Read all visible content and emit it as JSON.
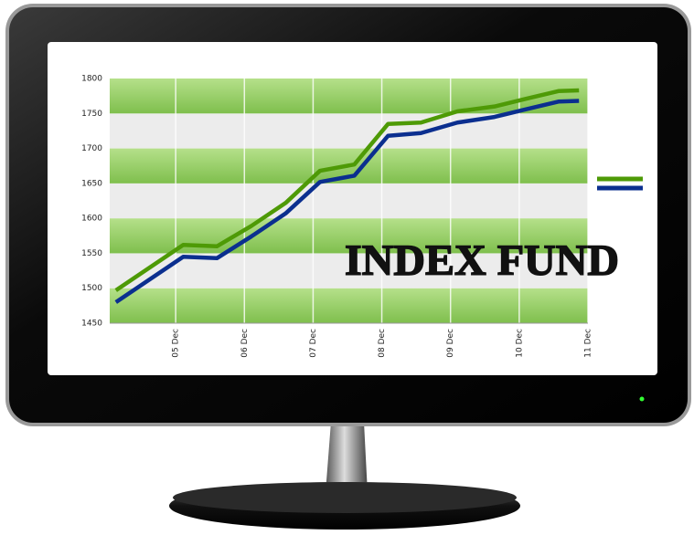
{
  "chart_data": {
    "type": "line",
    "title": "INDEX FUND",
    "x": [
      4.13,
      5.11,
      5.6,
      6.1,
      6.6,
      7.1,
      7.6,
      8.09,
      8.57,
      9.1,
      9.64,
      10.1,
      10.57,
      10.87
    ],
    "series": [
      {
        "color": "#4e9a06",
        "values": [
          1497,
          1562,
          1560,
          1589,
          1622,
          1668,
          1677,
          1735,
          1737,
          1753,
          1760,
          1771,
          1782,
          1783
        ]
      },
      {
        "color": "#0b2f8f",
        "values": [
          1480,
          1545,
          1543,
          1574,
          1607,
          1652,
          1661,
          1718,
          1722,
          1737,
          1745,
          1756,
          1767,
          1768
        ]
      }
    ],
    "xlim": [
      4.04,
      11
    ],
    "xticks": [
      {
        "value": 5,
        "label": "05 Dec"
      },
      {
        "value": 6,
        "label": "06 Dec"
      },
      {
        "value": 7,
        "label": "07 Dec"
      },
      {
        "value": 8,
        "label": "08 Dec"
      },
      {
        "value": 9,
        "label": "09 Dec"
      },
      {
        "value": 10,
        "label": "10 Dec"
      },
      {
        "value": 11,
        "label": "11 Dec"
      }
    ],
    "ylim": [
      1450,
      1800
    ],
    "yticks": [
      1450,
      1500,
      1550,
      1600,
      1650,
      1700,
      1750,
      1800
    ],
    "grid": true
  }
}
